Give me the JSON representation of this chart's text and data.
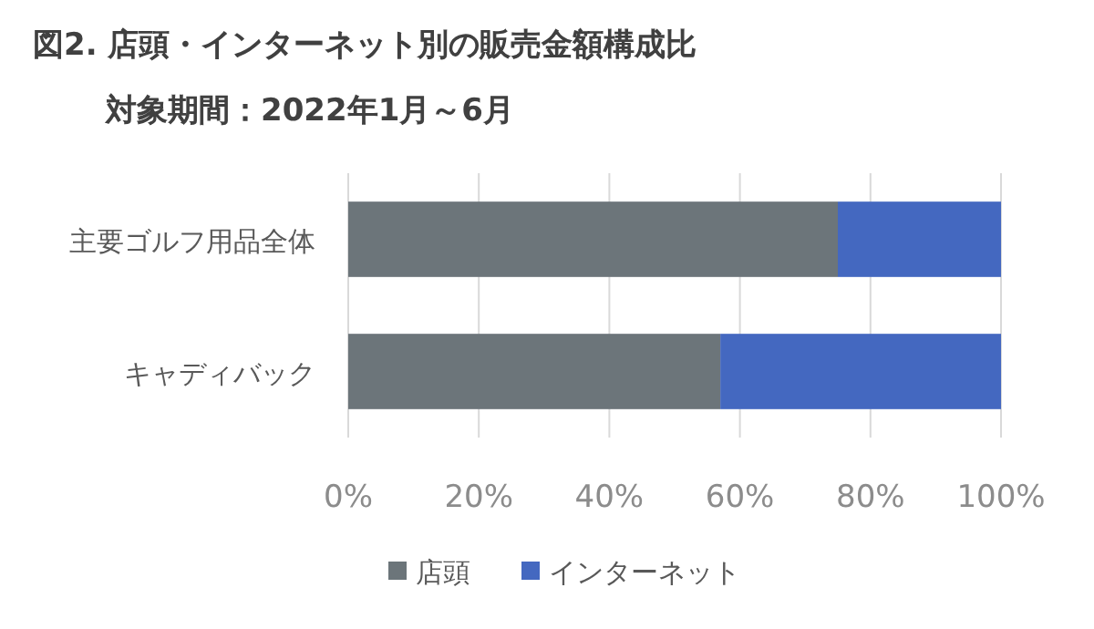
{
  "chart_data": {
    "type": "bar",
    "orientation": "horizontal",
    "stacked": true,
    "title": "図2. 店頭・インターネット別の販売金額構成比",
    "subtitle": "対象期間：2022年1月～6月",
    "categories": [
      "主要ゴルフ用品全体",
      "キャディバック"
    ],
    "series": [
      {
        "name": "店頭",
        "color": "#6c757a",
        "values": [
          75,
          57
        ]
      },
      {
        "name": "インターネット",
        "color": "#4468c0",
        "values": [
          25,
          43
        ]
      }
    ],
    "xlim": [
      0,
      100
    ],
    "xticks": [
      {
        "value": 0,
        "label": "0%"
      },
      {
        "value": 20,
        "label": "20%"
      },
      {
        "value": 40,
        "label": "40%"
      },
      {
        "value": 60,
        "label": "60%"
      },
      {
        "value": 80,
        "label": "80%"
      },
      {
        "value": 100,
        "label": "100%"
      }
    ],
    "grid": "x",
    "legend": "bottom"
  }
}
